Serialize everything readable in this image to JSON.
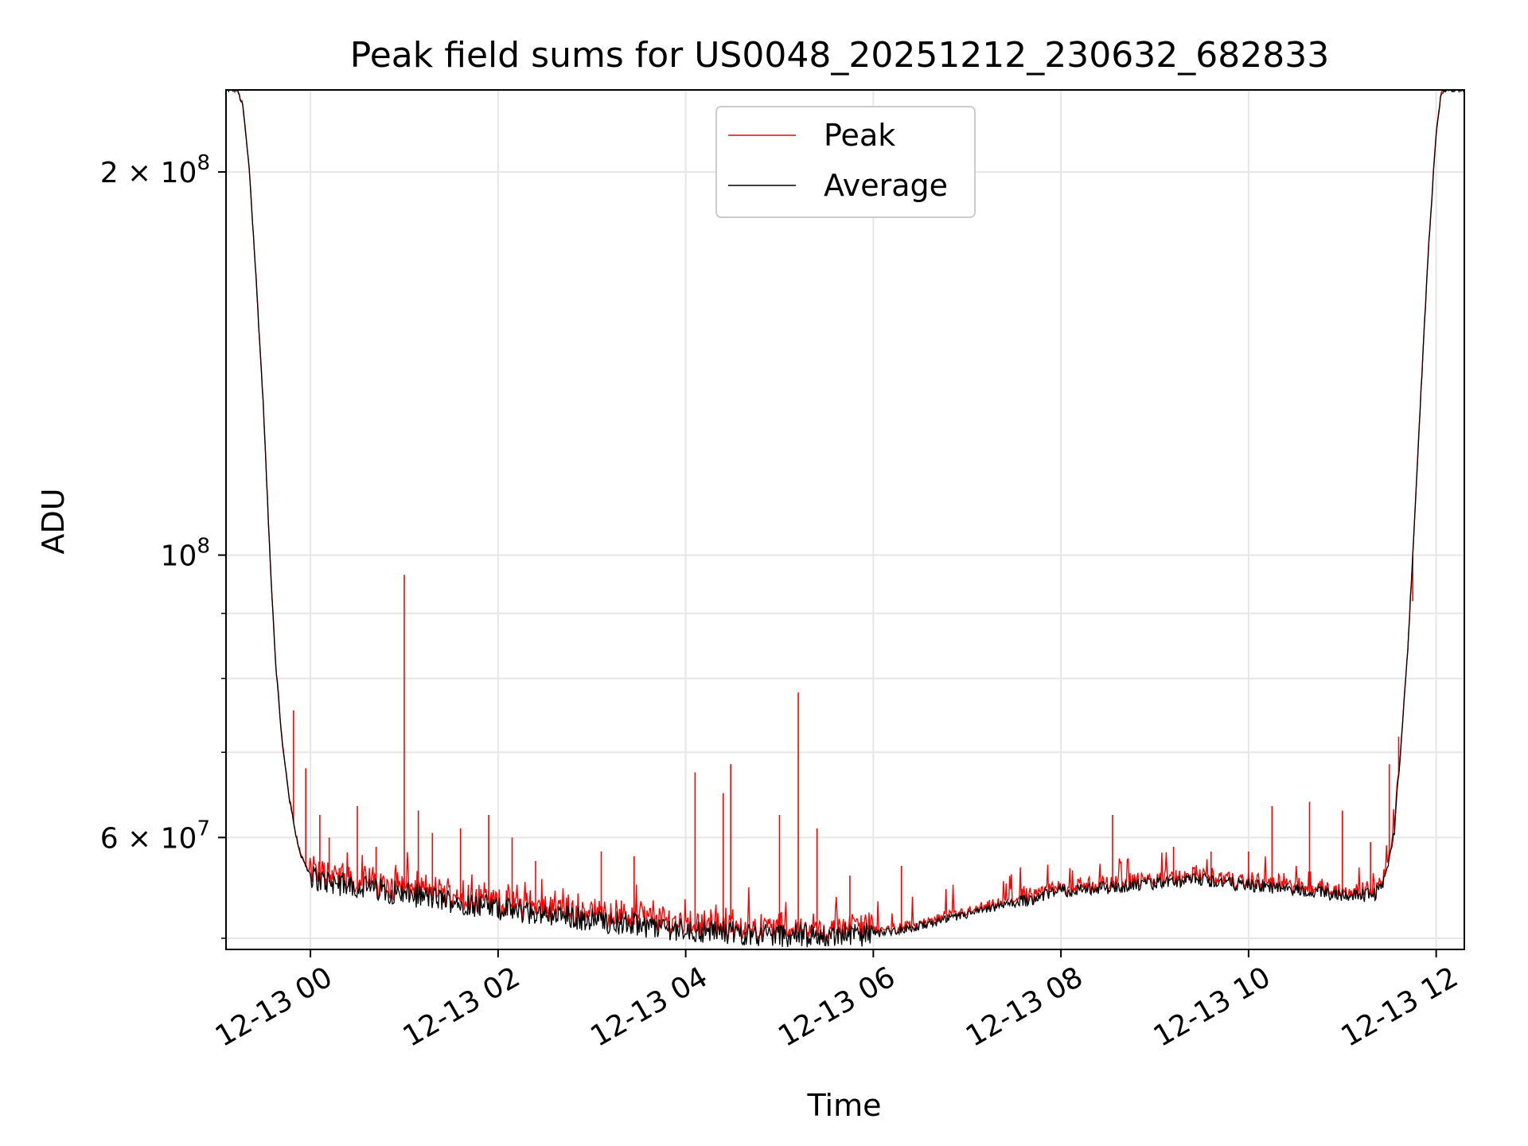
{
  "chart_data": {
    "type": "line",
    "title": "Peak field sums for US0048_20251212_230632_682833",
    "xlabel": "Time",
    "ylabel": "ADU",
    "yscale": "log",
    "x_unit": "hours since 12-13 00:00",
    "xlim": [
      -0.9,
      12.3
    ],
    "ylim": [
      49000000,
      232000000
    ],
    "grid": true,
    "legend": {
      "location": "upper center",
      "entries": [
        "Peak",
        "Average"
      ]
    },
    "x_tick_values": [
      0,
      2,
      4,
      6,
      8,
      10,
      12
    ],
    "x_tick_labels": [
      "12-13 00",
      "12-13 02",
      "12-13 04",
      "12-13 06",
      "12-13 08",
      "12-13 10",
      "12-13 12"
    ],
    "y_major_ticks": [
      {
        "value": 60000000,
        "mantissa": "6",
        "exponent": "7"
      },
      {
        "value": 100000000,
        "mantissa": "",
        "exponent": "8"
      },
      {
        "value": 200000000,
        "mantissa": "2",
        "exponent": "8"
      }
    ],
    "y_minor_ticks": [
      50000000,
      70000000,
      80000000,
      90000000
    ],
    "series": [
      {
        "name": "Average",
        "color": "#000000",
        "x": [
          -0.9,
          -0.78,
          -0.72,
          -0.65,
          -0.58,
          -0.5,
          -0.43,
          -0.37,
          -0.3,
          -0.22,
          -0.15,
          -0.1,
          -0.03,
          0.0,
          0.1,
          0.3,
          0.6,
          1.0,
          1.5,
          2.0,
          2.5,
          3.0,
          3.5,
          4.0,
          4.5,
          5.0,
          5.5,
          6.0,
          6.3,
          6.6,
          7.0,
          7.5,
          8.0,
          8.5,
          9.0,
          9.5,
          10.0,
          10.3,
          10.6,
          10.9,
          11.2,
          11.35,
          11.45,
          11.55,
          11.62,
          11.7,
          11.78,
          11.85,
          11.92,
          12.0,
          12.05,
          12.1,
          12.3
        ],
        "y": [
          232000000,
          232000000,
          225000000,
          200000000,
          165000000,
          130000000,
          99000000,
          82000000,
          71000000,
          64000000,
          60000000,
          58000000,
          56500000,
          56000000,
          55500000,
          55200000,
          54800000,
          54200000,
          53500000,
          52800000,
          52200000,
          51700000,
          51200000,
          50800000,
          50500000,
          50300000,
          50200000,
          50400000,
          50800000,
          51300000,
          52200000,
          53300000,
          54500000,
          54800000,
          55200000,
          55600000,
          55000000,
          54800000,
          54500000,
          54200000,
          54000000,
          54200000,
          55500000,
          60000000,
          70000000,
          85000000,
          110000000,
          140000000,
          175000000,
          215000000,
          230000000,
          232000000,
          232000000
        ]
      },
      {
        "name": "Peak",
        "color": "#ff0000",
        "spikes": [
          {
            "x": -0.18,
            "y": 75500000
          },
          {
            "x": -0.05,
            "y": 68000000
          },
          {
            "x": 0.1,
            "y": 62500000
          },
          {
            "x": 0.2,
            "y": 60000000
          },
          {
            "x": 0.5,
            "y": 63500000
          },
          {
            "x": 0.7,
            "y": 59000000
          },
          {
            "x": 1.0,
            "y": 96500000
          },
          {
            "x": 1.15,
            "y": 63000000
          },
          {
            "x": 1.3,
            "y": 60500000
          },
          {
            "x": 1.6,
            "y": 61000000
          },
          {
            "x": 1.9,
            "y": 62500000
          },
          {
            "x": 2.15,
            "y": 60000000
          },
          {
            "x": 2.4,
            "y": 57500000
          },
          {
            "x": 3.1,
            "y": 58500000
          },
          {
            "x": 3.45,
            "y": 58000000
          },
          {
            "x": 4.1,
            "y": 67500000
          },
          {
            "x": 4.4,
            "y": 65000000
          },
          {
            "x": 4.48,
            "y": 68500000
          },
          {
            "x": 5.0,
            "y": 62500000
          },
          {
            "x": 5.2,
            "y": 78000000
          },
          {
            "x": 5.4,
            "y": 61000000
          },
          {
            "x": 5.75,
            "y": 56000000
          },
          {
            "x": 6.3,
            "y": 57000000
          },
          {
            "x": 8.55,
            "y": 62500000
          },
          {
            "x": 9.2,
            "y": 59000000
          },
          {
            "x": 9.6,
            "y": 58500000
          },
          {
            "x": 10.0,
            "y": 58500000
          },
          {
            "x": 10.25,
            "y": 63500000
          },
          {
            "x": 10.65,
            "y": 64000000
          },
          {
            "x": 11.0,
            "y": 63000000
          },
          {
            "x": 11.3,
            "y": 59500000
          },
          {
            "x": 11.5,
            "y": 68500000
          },
          {
            "x": 11.6,
            "y": 72000000
          },
          {
            "x": 11.75,
            "y": 92000000
          }
        ]
      }
    ]
  }
}
